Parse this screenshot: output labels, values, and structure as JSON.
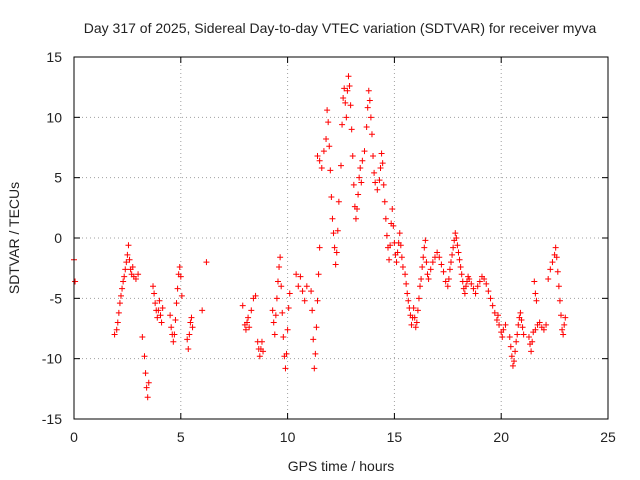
{
  "chart_data": {
    "type": "scatter",
    "title": "Day 317 of 2025, Sidereal Day-to-day VTEC variation (SDTVAR) for receiver myva",
    "xlabel": "GPS time / hours",
    "ylabel": "SDTVAR / TECUs",
    "xlim": [
      0,
      25
    ],
    "ylim": [
      -15,
      15
    ],
    "xticks": [
      0,
      5,
      10,
      15,
      20,
      25
    ],
    "yticks": [
      -15,
      -10,
      -5,
      0,
      5,
      10,
      15
    ],
    "grid": true,
    "marker": "+",
    "color": "#ff0000",
    "series": [
      {
        "name": "SDTVAR",
        "points": [
          [
            0.0,
            -1.8
          ],
          [
            0.05,
            -3.6
          ],
          [
            1.9,
            -8.0
          ],
          [
            2.0,
            -7.6
          ],
          [
            2.05,
            -7.0
          ],
          [
            2.1,
            -6.2
          ],
          [
            2.15,
            -5.4
          ],
          [
            2.2,
            -4.8
          ],
          [
            2.25,
            -4.2
          ],
          [
            2.3,
            -3.6
          ],
          [
            2.35,
            -3.2
          ],
          [
            2.4,
            -2.6
          ],
          [
            2.45,
            -2.0
          ],
          [
            2.5,
            -1.4
          ],
          [
            2.55,
            -0.6
          ],
          [
            2.6,
            -1.8
          ],
          [
            2.65,
            -2.6
          ],
          [
            2.7,
            -3.0
          ],
          [
            2.75,
            -2.4
          ],
          [
            2.8,
            -3.2
          ],
          [
            2.9,
            -3.4
          ],
          [
            3.0,
            -3.0
          ],
          [
            3.2,
            -8.2
          ],
          [
            3.3,
            -9.8
          ],
          [
            3.35,
            -11.2
          ],
          [
            3.4,
            -12.4
          ],
          [
            3.45,
            -13.2
          ],
          [
            3.5,
            -12.0
          ],
          [
            3.7,
            -4.0
          ],
          [
            3.75,
            -4.6
          ],
          [
            3.8,
            -5.4
          ],
          [
            3.85,
            -6.0
          ],
          [
            3.9,
            -6.6
          ],
          [
            3.95,
            -6.0
          ],
          [
            4.0,
            -5.2
          ],
          [
            4.05,
            -6.4
          ],
          [
            4.1,
            -7.0
          ],
          [
            4.15,
            -5.8
          ],
          [
            4.5,
            -6.4
          ],
          [
            4.55,
            -7.4
          ],
          [
            4.6,
            -8.0
          ],
          [
            4.65,
            -8.6
          ],
          [
            4.7,
            -8.0
          ],
          [
            4.75,
            -6.8
          ],
          [
            4.8,
            -5.4
          ],
          [
            4.85,
            -4.2
          ],
          [
            4.9,
            -3.0
          ],
          [
            4.95,
            -2.4
          ],
          [
            5.0,
            -3.2
          ],
          [
            5.05,
            -4.8
          ],
          [
            5.3,
            -8.4
          ],
          [
            5.35,
            -9.2
          ],
          [
            5.4,
            -8.0
          ],
          [
            5.45,
            -7.0
          ],
          [
            5.5,
            -6.6
          ],
          [
            5.55,
            -7.4
          ],
          [
            6.0,
            -6.0
          ],
          [
            6.2,
            -2.0
          ],
          [
            7.9,
            -5.6
          ],
          [
            8.0,
            -7.2
          ],
          [
            8.05,
            -7.6
          ],
          [
            8.1,
            -7.0
          ],
          [
            8.15,
            -6.6
          ],
          [
            8.2,
            -7.4
          ],
          [
            8.3,
            -6.0
          ],
          [
            8.4,
            -5.0
          ],
          [
            8.5,
            -4.8
          ],
          [
            8.6,
            -8.6
          ],
          [
            8.65,
            -9.2
          ],
          [
            8.7,
            -9.8
          ],
          [
            8.75,
            -9.2
          ],
          [
            8.8,
            -8.6
          ],
          [
            8.85,
            -9.4
          ],
          [
            9.3,
            -6.0
          ],
          [
            9.35,
            -7.0
          ],
          [
            9.4,
            -8.0
          ],
          [
            9.45,
            -6.4
          ],
          [
            9.5,
            -5.0
          ],
          [
            9.55,
            -3.6
          ],
          [
            9.6,
            -2.4
          ],
          [
            9.65,
            -1.6
          ],
          [
            9.7,
            -4.0
          ],
          [
            9.75,
            -6.2
          ],
          [
            9.8,
            -8.2
          ],
          [
            9.85,
            -9.8
          ],
          [
            9.9,
            -10.8
          ],
          [
            9.95,
            -9.6
          ],
          [
            10.0,
            -7.6
          ],
          [
            10.05,
            -5.8
          ],
          [
            10.1,
            -4.6
          ],
          [
            10.4,
            -3.0
          ],
          [
            10.5,
            -4.0
          ],
          [
            10.6,
            -3.2
          ],
          [
            10.7,
            -4.4
          ],
          [
            10.8,
            -5.2
          ],
          [
            10.9,
            -4.0
          ],
          [
            11.1,
            -4.4
          ],
          [
            11.15,
            -6.0
          ],
          [
            11.2,
            -8.4
          ],
          [
            11.25,
            -10.8
          ],
          [
            11.3,
            -9.6
          ],
          [
            11.35,
            -7.4
          ],
          [
            11.4,
            -5.2
          ],
          [
            11.45,
            -3.0
          ],
          [
            11.5,
            -0.8
          ],
          [
            11.4,
            6.8
          ],
          [
            11.5,
            6.4
          ],
          [
            11.6,
            5.8
          ],
          [
            11.7,
            7.2
          ],
          [
            11.8,
            8.2
          ],
          [
            11.85,
            10.6
          ],
          [
            11.9,
            9.6
          ],
          [
            11.95,
            7.6
          ],
          [
            12.0,
            5.6
          ],
          [
            12.05,
            3.4
          ],
          [
            12.1,
            1.6
          ],
          [
            12.15,
            0.4
          ],
          [
            12.2,
            -0.8
          ],
          [
            12.25,
            -2.2
          ],
          [
            12.3,
            -1.2
          ],
          [
            12.35,
            0.6
          ],
          [
            12.4,
            3.0
          ],
          [
            12.5,
            6.0
          ],
          [
            12.55,
            9.4
          ],
          [
            12.6,
            11.6
          ],
          [
            12.65,
            12.4
          ],
          [
            12.7,
            11.2
          ],
          [
            12.75,
            10.0
          ],
          [
            12.8,
            12.2
          ],
          [
            12.85,
            13.4
          ],
          [
            12.9,
            12.6
          ],
          [
            12.95,
            11.0
          ],
          [
            13.0,
            9.0
          ],
          [
            13.05,
            6.8
          ],
          [
            13.1,
            4.4
          ],
          [
            13.15,
            2.6
          ],
          [
            13.2,
            1.6
          ],
          [
            13.25,
            2.4
          ],
          [
            13.3,
            3.6
          ],
          [
            13.35,
            5.0
          ],
          [
            13.4,
            5.8
          ],
          [
            13.45,
            4.6
          ],
          [
            13.5,
            6.4
          ],
          [
            13.6,
            7.2
          ],
          [
            13.7,
            9.2
          ],
          [
            13.75,
            10.8
          ],
          [
            13.8,
            12.2
          ],
          [
            13.85,
            11.4
          ],
          [
            13.9,
            10.0
          ],
          [
            13.95,
            8.6
          ],
          [
            14.0,
            6.8
          ],
          [
            14.05,
            5.4
          ],
          [
            14.1,
            4.6
          ],
          [
            14.2,
            4.0
          ],
          [
            14.3,
            4.8
          ],
          [
            14.35,
            5.8
          ],
          [
            14.4,
            7.0
          ],
          [
            14.45,
            6.2
          ],
          [
            14.5,
            4.4
          ],
          [
            14.55,
            3.0
          ],
          [
            14.6,
            1.6
          ],
          [
            14.65,
            0.2
          ],
          [
            14.7,
            -0.8
          ],
          [
            14.75,
            -1.8
          ],
          [
            14.8,
            -0.6
          ],
          [
            14.85,
            1.2
          ],
          [
            14.9,
            2.4
          ],
          [
            14.95,
            1.0
          ],
          [
            15.0,
            -0.4
          ],
          [
            15.05,
            -1.4
          ],
          [
            15.1,
            -2.0
          ],
          [
            15.15,
            -1.2
          ],
          [
            15.2,
            -0.4
          ],
          [
            15.25,
            0.4
          ],
          [
            15.3,
            -0.6
          ],
          [
            15.35,
            -1.6
          ],
          [
            15.4,
            -2.4
          ],
          [
            15.5,
            -3.0
          ],
          [
            15.55,
            -3.8
          ],
          [
            15.6,
            -4.6
          ],
          [
            15.65,
            -5.2
          ],
          [
            15.7,
            -5.8
          ],
          [
            15.75,
            -6.4
          ],
          [
            15.8,
            -7.2
          ],
          [
            15.85,
            -6.6
          ],
          [
            15.9,
            -5.8
          ],
          [
            15.95,
            -6.6
          ],
          [
            16.0,
            -7.4
          ],
          [
            16.05,
            -7.0
          ],
          [
            16.1,
            -6.0
          ],
          [
            16.15,
            -5.0
          ],
          [
            16.2,
            -4.0
          ],
          [
            16.25,
            -3.4
          ],
          [
            16.3,
            -2.4
          ],
          [
            16.35,
            -1.6
          ],
          [
            16.4,
            -0.8
          ],
          [
            16.45,
            -0.2
          ],
          [
            16.5,
            -2.0
          ],
          [
            16.55,
            -3.0
          ],
          [
            16.6,
            -3.4
          ],
          [
            16.7,
            -2.6
          ],
          [
            16.8,
            -2.0
          ],
          [
            16.9,
            -1.6
          ],
          [
            17.0,
            -1.2
          ],
          [
            17.1,
            -1.6
          ],
          [
            17.2,
            -2.2
          ],
          [
            17.3,
            -2.8
          ],
          [
            17.4,
            -3.6
          ],
          [
            17.5,
            -4.0
          ],
          [
            17.55,
            -3.4
          ],
          [
            17.6,
            -2.6
          ],
          [
            17.65,
            -2.0
          ],
          [
            17.7,
            -1.4
          ],
          [
            17.75,
            -0.8
          ],
          [
            17.8,
            -0.2
          ],
          [
            17.85,
            0.4
          ],
          [
            17.9,
            0.0
          ],
          [
            17.95,
            -0.6
          ],
          [
            18.0,
            -1.2
          ],
          [
            18.05,
            -1.8
          ],
          [
            18.1,
            -2.4
          ],
          [
            18.15,
            -3.0
          ],
          [
            18.2,
            -3.6
          ],
          [
            18.25,
            -4.2
          ],
          [
            18.3,
            -4.6
          ],
          [
            18.35,
            -4.0
          ],
          [
            18.4,
            -3.6
          ],
          [
            18.45,
            -3.2
          ],
          [
            18.5,
            -3.4
          ],
          [
            18.6,
            -3.8
          ],
          [
            18.7,
            -4.2
          ],
          [
            18.8,
            -4.6
          ],
          [
            18.9,
            -4.0
          ],
          [
            19.0,
            -3.6
          ],
          [
            19.1,
            -3.2
          ],
          [
            19.2,
            -3.4
          ],
          [
            19.3,
            -3.8
          ],
          [
            19.4,
            -4.4
          ],
          [
            19.5,
            -5.0
          ],
          [
            19.6,
            -5.6
          ],
          [
            19.7,
            -6.2
          ],
          [
            19.8,
            -6.8
          ],
          [
            19.85,
            -6.4
          ],
          [
            19.9,
            -7.2
          ],
          [
            20.0,
            -7.8
          ],
          [
            20.05,
            -8.2
          ],
          [
            20.1,
            -7.6
          ],
          [
            20.2,
            -7.2
          ],
          [
            20.4,
            -8.2
          ],
          [
            20.45,
            -9.0
          ],
          [
            20.5,
            -9.8
          ],
          [
            20.55,
            -10.6
          ],
          [
            20.6,
            -10.2
          ],
          [
            20.65,
            -9.4
          ],
          [
            20.7,
            -8.6
          ],
          [
            20.75,
            -8.0
          ],
          [
            20.8,
            -7.2
          ],
          [
            20.85,
            -6.6
          ],
          [
            20.9,
            -6.2
          ],
          [
            20.95,
            -6.8
          ],
          [
            21.0,
            -7.4
          ],
          [
            21.05,
            -8.0
          ],
          [
            21.3,
            -8.2
          ],
          [
            21.35,
            -8.8
          ],
          [
            21.4,
            -9.4
          ],
          [
            21.45,
            -8.6
          ],
          [
            21.5,
            -7.8
          ],
          [
            21.6,
            -7.6
          ],
          [
            21.7,
            -7.2
          ],
          [
            21.8,
            -7.0
          ],
          [
            21.9,
            -7.4
          ],
          [
            22.0,
            -7.6
          ],
          [
            22.1,
            -7.2
          ],
          [
            21.55,
            -3.6
          ],
          [
            21.6,
            -4.6
          ],
          [
            21.65,
            -5.2
          ],
          [
            22.2,
            -3.4
          ],
          [
            22.3,
            -2.6
          ],
          [
            22.4,
            -2.0
          ],
          [
            22.5,
            -1.4
          ],
          [
            22.55,
            -0.8
          ],
          [
            22.6,
            -1.6
          ],
          [
            22.65,
            -2.8
          ],
          [
            22.7,
            -4.0
          ],
          [
            22.75,
            -5.2
          ],
          [
            22.8,
            -6.4
          ],
          [
            22.85,
            -7.6
          ],
          [
            22.9,
            -8.0
          ],
          [
            22.95,
            -7.2
          ],
          [
            23.0,
            -6.6
          ]
        ]
      }
    ]
  }
}
